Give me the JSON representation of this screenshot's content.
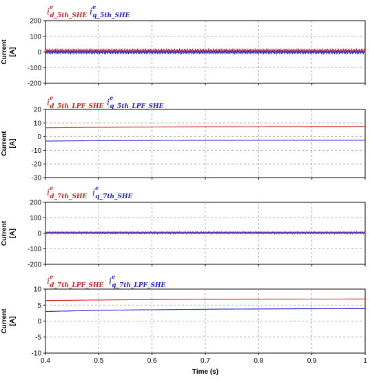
{
  "chart_data": [
    {
      "type": "line",
      "ylabel": "Current [A]",
      "ylabel_lines": [
        "Current",
        "[A]"
      ],
      "ylim": [
        -200,
        200
      ],
      "yticks": [
        200,
        100,
        0,
        -100,
        -200
      ],
      "grid": true,
      "series": [
        {
          "name": "d_5th_SHE",
          "legend_base": "i",
          "legend_sup": "e",
          "legend_sub": "d_5th_SHE",
          "color": "#cc2222",
          "style": "ripple",
          "mean": 8,
          "amplitude": 14
        },
        {
          "name": "q_5th_SHE",
          "legend_base": "i",
          "legend_sup": "e",
          "legend_sub": "q_5th_SHE",
          "color": "#2222cc",
          "style": "ripple",
          "mean": -2,
          "amplitude": 12
        }
      ]
    },
    {
      "type": "line",
      "ylabel": "Current [A]",
      "ylabel_lines": [
        "Current",
        "[A]"
      ],
      "ylim": [
        -30,
        20
      ],
      "yticks": [
        20,
        10,
        0,
        -10,
        -20,
        -30
      ],
      "grid": true,
      "series": [
        {
          "name": "d_5th_LPF_SHE",
          "legend_base": "i",
          "legend_sup": "e",
          "legend_sub": "d_5th_LPF_SHE",
          "color": "#cc2222",
          "style": "line",
          "x": [
            0.4,
            1.0
          ],
          "y": [
            6.5,
            7.5
          ]
        },
        {
          "name": "q_5th_LPF_SHE",
          "legend_base": "i",
          "legend_sup": "e",
          "legend_sub": "q_5th_LPF_SHE",
          "color": "#2222cc",
          "style": "line",
          "x": [
            0.4,
            1.0
          ],
          "y": [
            -3.2,
            -2.5
          ]
        }
      ]
    },
    {
      "type": "line",
      "ylabel": "Current [A]",
      "ylabel_lines": [
        "Current",
        "[A]"
      ],
      "ylim": [
        -200,
        200
      ],
      "yticks": [
        200,
        100,
        0,
        -100,
        -200
      ],
      "grid": true,
      "series": [
        {
          "name": "d_7th_SHE",
          "legend_base": "i",
          "legend_sup": "e",
          "legend_sub": "d_7th_SHE",
          "color": "#cc2222",
          "style": "ripple",
          "mean": 5,
          "amplitude": 6
        },
        {
          "name": "q_7th_SHE",
          "legend_base": "i",
          "legend_sup": "e",
          "legend_sub": "q_7th_SHE",
          "color": "#2222cc",
          "style": "ripple",
          "mean": 3,
          "amplitude": 6
        }
      ]
    },
    {
      "type": "line",
      "ylabel": "Current [A]",
      "ylabel_lines": [
        "Current",
        "[A]"
      ],
      "xlabel": "Time (s)",
      "xlim": [
        0.4,
        1.0
      ],
      "xticks": [
        "0.4",
        "0.5",
        "0.6",
        "0.7",
        "0.8",
        "0.9",
        "1"
      ],
      "ylim": [
        -10,
        10
      ],
      "yticks": [
        10,
        5,
        0,
        -5,
        -10
      ],
      "grid": true,
      "series": [
        {
          "name": "d_7th_LPF_SHE",
          "legend_base": "i",
          "legend_sup": "e",
          "legend_sub": "d_7th_LPF_SHE",
          "color": "#cc2222",
          "style": "line",
          "x": [
            0.4,
            1.0
          ],
          "y": [
            6.4,
            6.9
          ]
        },
        {
          "name": "q_7th_LPF_SHE",
          "legend_base": "i",
          "legend_sup": "e",
          "legend_sub": "q_7th_LPF_SHE",
          "color": "#2222cc",
          "style": "line",
          "x": [
            0.4,
            1.0
          ],
          "y": [
            3.0,
            3.9
          ]
        }
      ]
    }
  ]
}
